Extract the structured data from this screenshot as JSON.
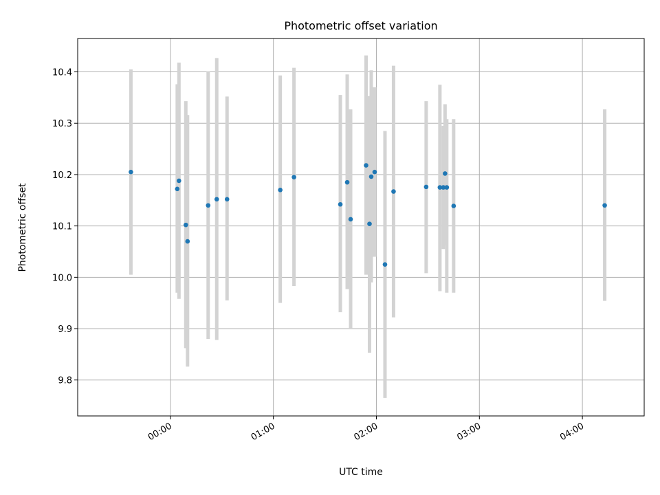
{
  "chart_data": {
    "type": "scatter",
    "title": "Photometric offset variation",
    "xlabel": "UTC time",
    "ylabel": "Photometric offset",
    "xlim": [
      "23:06",
      "04:36"
    ],
    "ylim": [
      9.73,
      10.465
    ],
    "grid": true,
    "x_ticks": [
      "00:00",
      "01:00",
      "02:00",
      "03:00",
      "04:00"
    ],
    "y_ticks": [
      9.8,
      9.9,
      10.0,
      10.1,
      10.2,
      10.3,
      10.4
    ],
    "y_tick_labels": [
      "9.8",
      "9.9",
      "10.0",
      "10.1",
      "10.2",
      "10.3",
      "10.4"
    ],
    "series": [
      {
        "x": [
          "23:37",
          "00:04",
          "00:05",
          "00:09",
          "00:10",
          "00:22",
          "00:27",
          "00:33",
          "01:04",
          "01:12",
          "01:39",
          "01:43",
          "01:45",
          "01:54",
          "01:56",
          "01:57",
          "01:59",
          "02:05",
          "02:10",
          "02:29",
          "02:37",
          "02:39",
          "02:40",
          "02:41",
          "02:45",
          "04:13"
        ],
        "y": [
          10.205,
          10.172,
          10.188,
          10.102,
          10.07,
          10.14,
          10.152,
          10.152,
          10.17,
          10.195,
          10.142,
          10.185,
          10.113,
          10.218,
          10.104,
          10.196,
          10.205,
          10.025,
          10.167,
          10.176,
          10.175,
          10.175,
          10.202,
          10.175,
          10.139,
          10.14
        ],
        "yerr_low": [
          10.005,
          9.97,
          9.958,
          9.862,
          9.826,
          9.88,
          9.878,
          9.955,
          9.95,
          9.983,
          9.932,
          9.977,
          9.9,
          10.005,
          9.853,
          9.99,
          10.04,
          9.765,
          9.922,
          10.008,
          9.973,
          10.055,
          10.062,
          9.97,
          9.97,
          9.954
        ],
        "yerr_high": [
          10.405,
          10.376,
          10.418,
          10.343,
          10.316,
          10.4,
          10.427,
          10.352,
          10.393,
          10.408,
          10.355,
          10.395,
          10.327,
          10.432,
          10.353,
          10.403,
          10.37,
          10.285,
          10.412,
          10.343,
          10.375,
          10.295,
          10.337,
          10.308,
          10.308,
          10.327
        ]
      }
    ]
  }
}
